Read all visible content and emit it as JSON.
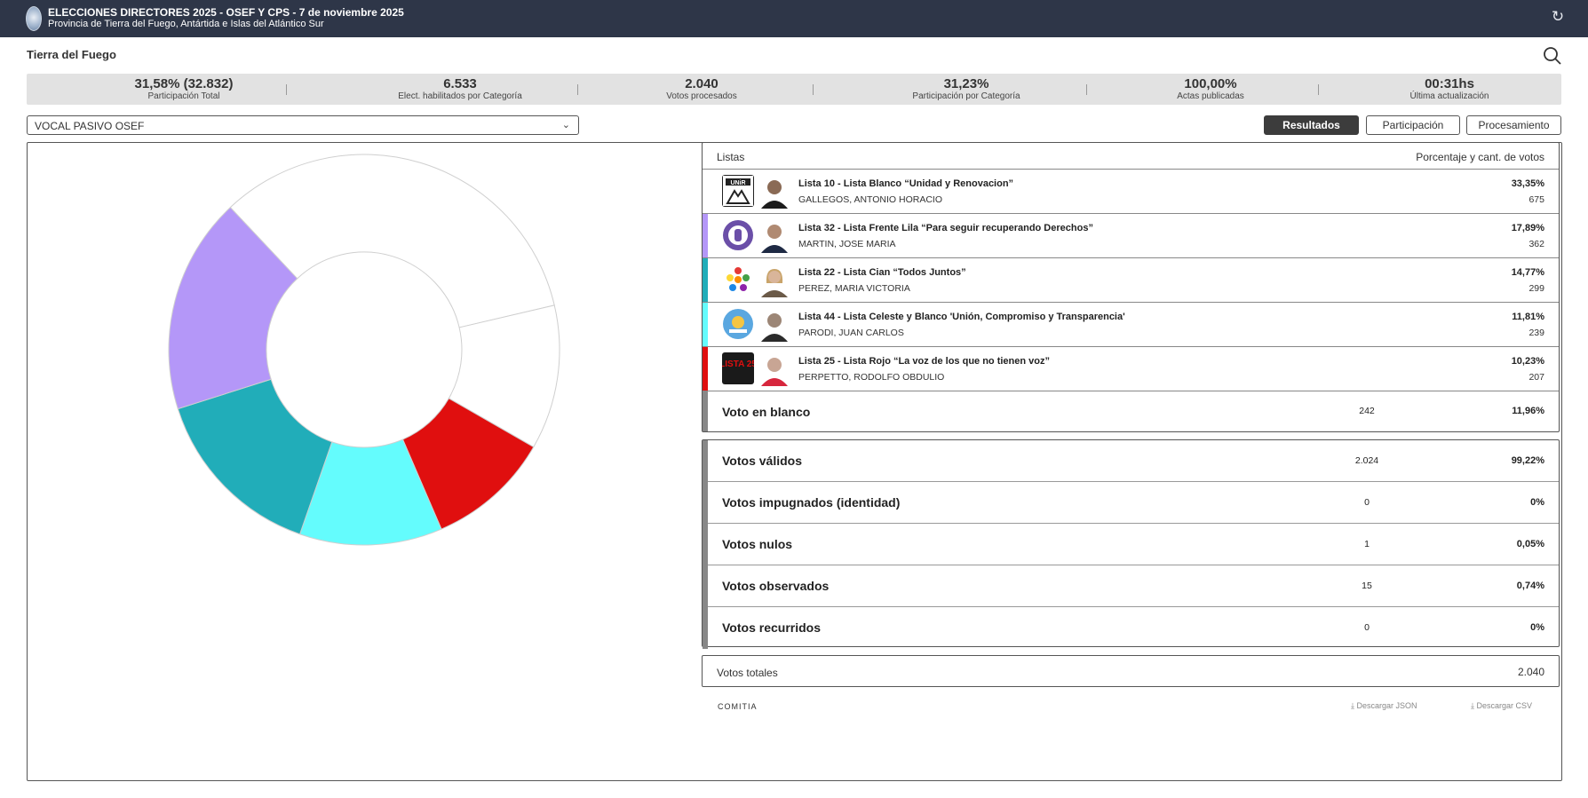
{
  "header": {
    "title": "ELECCIONES DIRECTORES 2025 - OSEF Y CPS - 7 de noviembre 2025",
    "subtitle": "Provincia de Tierra del Fuego, Antártida e Islas del Atlántico Sur",
    "refresh_icon": "↻"
  },
  "region": "Tierra del Fuego",
  "stats": [
    {
      "value": "31,58% (32.832)",
      "label": "Participación Total"
    },
    {
      "value": "6.533",
      "label": "Elect. habilitados por Categoría"
    },
    {
      "value": "2.040",
      "label": "Votos procesados"
    },
    {
      "value": "31,23%",
      "label": "Participación por Categoría"
    },
    {
      "value": "100,00%",
      "label": "Actas publicadas"
    },
    {
      "value": "00:31hs",
      "label": "Última actualización"
    }
  ],
  "category_select": {
    "value": "VOCAL PASIVO OSEF",
    "chevron": "⌄"
  },
  "tabs": {
    "results": "Resultados",
    "participation": "Participación",
    "processing": "Procesamiento"
  },
  "table": {
    "col_lists": "Listas",
    "col_pct": "Porcentaje y cant. de votos",
    "rows": [
      {
        "name": "Lista 10 - Lista Blanco “Unidad y Renovacion”",
        "candidate": "GALLEGOS, ANTONIO HORACIO",
        "pct": "33,35%",
        "count": "675",
        "color": "#ffffff",
        "logo_text": "UNiR"
      },
      {
        "name": "Lista 32 - Lista Frente Lila “Para seguir recuperando Derechos”",
        "candidate": "MARTIN, JOSE MARIA",
        "pct": "17,89%",
        "count": "362",
        "color": "#b497f8",
        "logo_text": ""
      },
      {
        "name": "Lista 22 - Lista Cian “Todos Juntos”",
        "candidate": "PEREZ, MARIA VICTORIA",
        "pct": "14,77%",
        "count": "299",
        "color": "#21adb9",
        "logo_text": ""
      },
      {
        "name": "Lista 44 - Lista Celeste y Blanco 'Unión, Compromiso y Transparencia'",
        "candidate": "PARODI, JUAN CARLOS",
        "pct": "11,81%",
        "count": "239",
        "color": "#64fcfd",
        "logo_text": ""
      },
      {
        "name": "Lista 25 - Lista Rojo “La voz de los que no tienen voz”",
        "candidate": "PERPETTO, RODOLFO OBDULIO",
        "pct": "10,23%",
        "count": "207",
        "color": "#e00f0f",
        "logo_text": "LISTA 25"
      }
    ],
    "blank": {
      "label": "Voto en blanco",
      "count": "242",
      "pct": "11,96%"
    }
  },
  "summary": [
    {
      "label": "Votos válidos",
      "count": "2.024",
      "pct": "99,22%"
    },
    {
      "label": "Votos impugnados (identidad)",
      "count": "0",
      "pct": "0%"
    },
    {
      "label": "Votos nulos",
      "count": "1",
      "pct": "0,05%"
    },
    {
      "label": "Votos observados",
      "count": "15",
      "pct": "0,74%"
    },
    {
      "label": "Votos recurridos",
      "count": "0",
      "pct": "0%"
    }
  ],
  "totals": {
    "label": "Votos totales",
    "value": "2.040"
  },
  "footer": {
    "brand": "COMITIA",
    "download_json": "⤓  Descargar JSON",
    "download_csv": "⤓  Descargar CSV"
  },
  "chart_data": {
    "type": "pie",
    "labels": [
      "Lista 10",
      "Voto en blanco",
      "Lista 25",
      "Lista 44",
      "Lista 22",
      "Lista 32"
    ],
    "values": [
      33.35,
      11.96,
      10.23,
      11.81,
      14.77,
      17.89
    ],
    "colors": [
      "#ffffff",
      "#ffffff",
      "#e00f0f",
      "#64fcfd",
      "#21adb9",
      "#b497f8"
    ]
  }
}
